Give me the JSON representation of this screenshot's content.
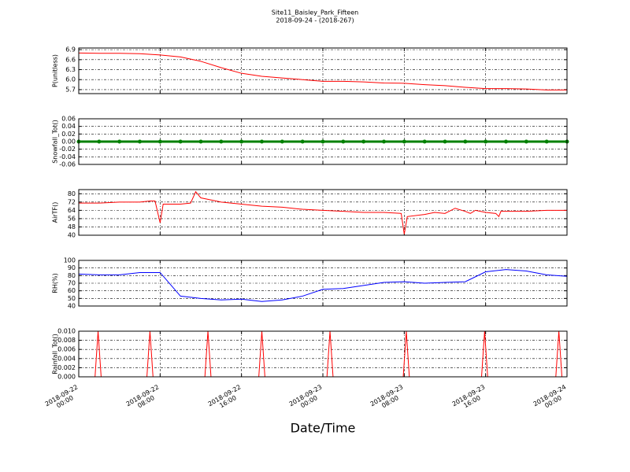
{
  "chart_data": [
    {
      "type": "line",
      "title": "Site11_Baisley_Park_Fifteen",
      "subtitle": "2018-09-24 - (2018-267)",
      "ylabel": "P(unitless)",
      "color": "#ff0000",
      "x": [
        "2018-09-22 00:00",
        "2018-09-22 02:00",
        "2018-09-22 04:00",
        "2018-09-22 06:00",
        "2018-09-22 08:00",
        "2018-09-22 10:00",
        "2018-09-22 12:00",
        "2018-09-22 14:00",
        "2018-09-22 16:00",
        "2018-09-22 18:00",
        "2018-09-22 20:00",
        "2018-09-22 22:00",
        "2018-09-23 00:00",
        "2018-09-23 02:00",
        "2018-09-23 04:00",
        "2018-09-23 06:00",
        "2018-09-23 08:00",
        "2018-09-23 10:00",
        "2018-09-23 12:00",
        "2018-09-23 14:00",
        "2018-09-23 16:00",
        "2018-09-23 18:00",
        "2018-09-23 20:00",
        "2018-09-23 22:00",
        "2018-09-24 00:00"
      ],
      "values": [
        6.8,
        6.79,
        6.79,
        6.78,
        6.74,
        6.68,
        6.55,
        6.36,
        6.19,
        6.1,
        6.05,
        6.0,
        5.95,
        5.95,
        5.93,
        5.9,
        5.89,
        5.85,
        5.82,
        5.77,
        5.73,
        5.73,
        5.72,
        5.69,
        5.69
      ],
      "ylim": [
        5.58,
        6.95
      ],
      "yticks": [
        5.7,
        {
          "value": 6,
          "label": "6.0"
        },
        6.3,
        6.6,
        6.9
      ],
      "grid": true
    },
    {
      "type": "line",
      "ylabel": "Snowfall_Tot()",
      "color": "#008000",
      "marker": true,
      "x": [
        "2018-09-22 00:00",
        "2018-09-22 02:00",
        "2018-09-22 04:00",
        "2018-09-22 06:00",
        "2018-09-22 08:00",
        "2018-09-22 10:00",
        "2018-09-22 12:00",
        "2018-09-22 14:00",
        "2018-09-22 16:00",
        "2018-09-22 18:00",
        "2018-09-22 20:00",
        "2018-09-22 22:00",
        "2018-09-23 00:00",
        "2018-09-23 02:00",
        "2018-09-23 04:00",
        "2018-09-23 06:00",
        "2018-09-23 08:00",
        "2018-09-23 10:00",
        "2018-09-23 12:00",
        "2018-09-23 14:00",
        "2018-09-23 16:00",
        "2018-09-23 18:00",
        "2018-09-23 20:00",
        "2018-09-23 22:00",
        "2018-09-24 00:00"
      ],
      "values": [
        0,
        0,
        0,
        0,
        0,
        0,
        0,
        0,
        0,
        0,
        0,
        0,
        0,
        0,
        0,
        0,
        0,
        0,
        0,
        0,
        0,
        0,
        0,
        0,
        0
      ],
      "ylim": [
        -0.06,
        0.06
      ],
      "yticks": [
        -0.06,
        -0.04,
        -0.02,
        {
          "value": 0,
          "label": "0.00"
        },
        0.02,
        0.04,
        0.06
      ],
      "grid": true
    },
    {
      "type": "line",
      "ylabel": "AirTF()",
      "color": "#ff0000",
      "x": [
        "2018-09-22 00:00",
        "2018-09-22 02:00",
        "2018-09-22 04:00",
        "2018-09-22 06:00",
        "2018-09-22 07:00",
        "2018-09-22 07:30",
        "2018-09-22 08:00",
        "2018-09-22 08:18",
        "2018-09-22 10:00",
        "2018-09-22 11:00",
        "2018-09-22 11:30",
        "2018-09-22 12:00",
        "2018-09-22 14:00",
        "2018-09-22 16:00",
        "2018-09-22 18:00",
        "2018-09-22 20:00",
        "2018-09-22 22:00",
        "2018-09-23 00:00",
        "2018-09-23 02:00",
        "2018-09-23 04:00",
        "2018-09-23 06:00",
        "2018-09-23 07:42",
        "2018-09-23 08:00",
        "2018-09-23 08:18",
        "2018-09-23 10:00",
        "2018-09-23 11:00",
        "2018-09-23 12:00",
        "2018-09-23 13:00",
        "2018-09-23 14:00",
        "2018-09-23 14:30",
        "2018-09-23 15:00",
        "2018-09-23 16:00",
        "2018-09-23 17:00",
        "2018-09-23 17:18",
        "2018-09-23 17:30",
        "2018-09-23 20:00",
        "2018-09-23 22:00",
        "2018-09-24 00:00"
      ],
      "values": [
        71,
        71,
        72,
        72,
        73,
        73,
        52,
        70,
        70,
        71,
        82,
        76,
        72,
        70,
        68,
        67,
        65,
        64,
        63,
        62,
        62,
        61,
        41,
        58,
        60,
        62,
        61,
        66,
        63,
        61,
        64,
        62,
        61,
        58,
        63,
        63,
        64,
        64
      ],
      "ylim": [
        40,
        84
      ],
      "yticks": [
        40,
        48,
        56,
        64,
        72,
        80
      ],
      "grid": true
    },
    {
      "type": "line",
      "ylabel": "RH(%)",
      "color": "#0000ff",
      "x": [
        "2018-09-22 00:00",
        "2018-09-22 02:00",
        "2018-09-22 04:00",
        "2018-09-22 06:00",
        "2018-09-22 08:00",
        "2018-09-22 10:00",
        "2018-09-22 12:00",
        "2018-09-22 14:00",
        "2018-09-22 16:00",
        "2018-09-22 18:00",
        "2018-09-22 20:00",
        "2018-09-22 22:00",
        "2018-09-23 00:00",
        "2018-09-23 02:00",
        "2018-09-23 04:00",
        "2018-09-23 06:00",
        "2018-09-23 08:00",
        "2018-09-23 10:00",
        "2018-09-23 12:00",
        "2018-09-23 14:00",
        "2018-09-23 16:00",
        "2018-09-23 18:00",
        "2018-09-23 20:00",
        "2018-09-23 22:00",
        "2018-09-24 00:00"
      ],
      "values": [
        82,
        81,
        81,
        84,
        84,
        53,
        50,
        48,
        49,
        46,
        48,
        53,
        62,
        63,
        67,
        71,
        72,
        70,
        71,
        72,
        85,
        88,
        86,
        81,
        79
      ],
      "ylim": [
        40,
        100
      ],
      "yticks": [
        40,
        50,
        60,
        70,
        80,
        90,
        100
      ],
      "grid": true
    },
    {
      "type": "line",
      "ylabel": "Rainfall_Tot()",
      "color": "#ff0000",
      "xlabel": "Date/Time",
      "x": [
        "2018-09-22 00:00",
        "2018-09-22 01:36",
        "2018-09-22 01:54",
        "2018-09-22 02:12",
        "2018-09-22 06:42",
        "2018-09-22 07:00",
        "2018-09-22 07:18",
        "2018-09-22 12:24",
        "2018-09-22 12:42",
        "2018-09-22 13:00",
        "2018-09-22 17:42",
        "2018-09-22 18:00",
        "2018-09-22 18:18",
        "2018-09-23 00:24",
        "2018-09-23 00:42",
        "2018-09-23 01:00",
        "2018-09-23 07:54",
        "2018-09-23 08:12",
        "2018-09-23 08:30",
        "2018-09-23 15:36",
        "2018-09-23 15:54",
        "2018-09-23 16:12",
        "2018-09-23 22:54",
        "2018-09-23 23:12",
        "2018-09-23 23:30",
        "2018-09-24 00:00"
      ],
      "values": [
        0,
        0,
        0.01,
        0,
        0,
        0.01,
        0,
        0,
        0.01,
        0,
        0,
        0.01,
        0,
        0,
        0.01,
        0,
        0,
        0.01,
        0,
        0,
        0.01,
        0,
        0,
        0.01,
        0,
        0
      ],
      "ylim": [
        0,
        0.01
      ],
      "yticks": [
        {
          "value": 0,
          "label": "0.000"
        },
        {
          "value": 0.002,
          "label": "0.002"
        },
        {
          "value": 0.004,
          "label": "0.004"
        },
        {
          "value": 0.006,
          "label": "0.006"
        },
        {
          "value": 0.008,
          "label": "0.008"
        },
        {
          "value": 0.01,
          "label": "0.010"
        }
      ],
      "grid": true,
      "xlim": [
        "2018-09-22 00:00",
        "2018-09-24 00:00"
      ],
      "xticks": [
        "2018-09-22 00:00",
        "2018-09-22 08:00",
        "2018-09-22 16:00",
        "2018-09-23 00:00",
        "2018-09-23 08:00",
        "2018-09-23 16:00",
        "2018-09-24 00:00"
      ]
    }
  ]
}
